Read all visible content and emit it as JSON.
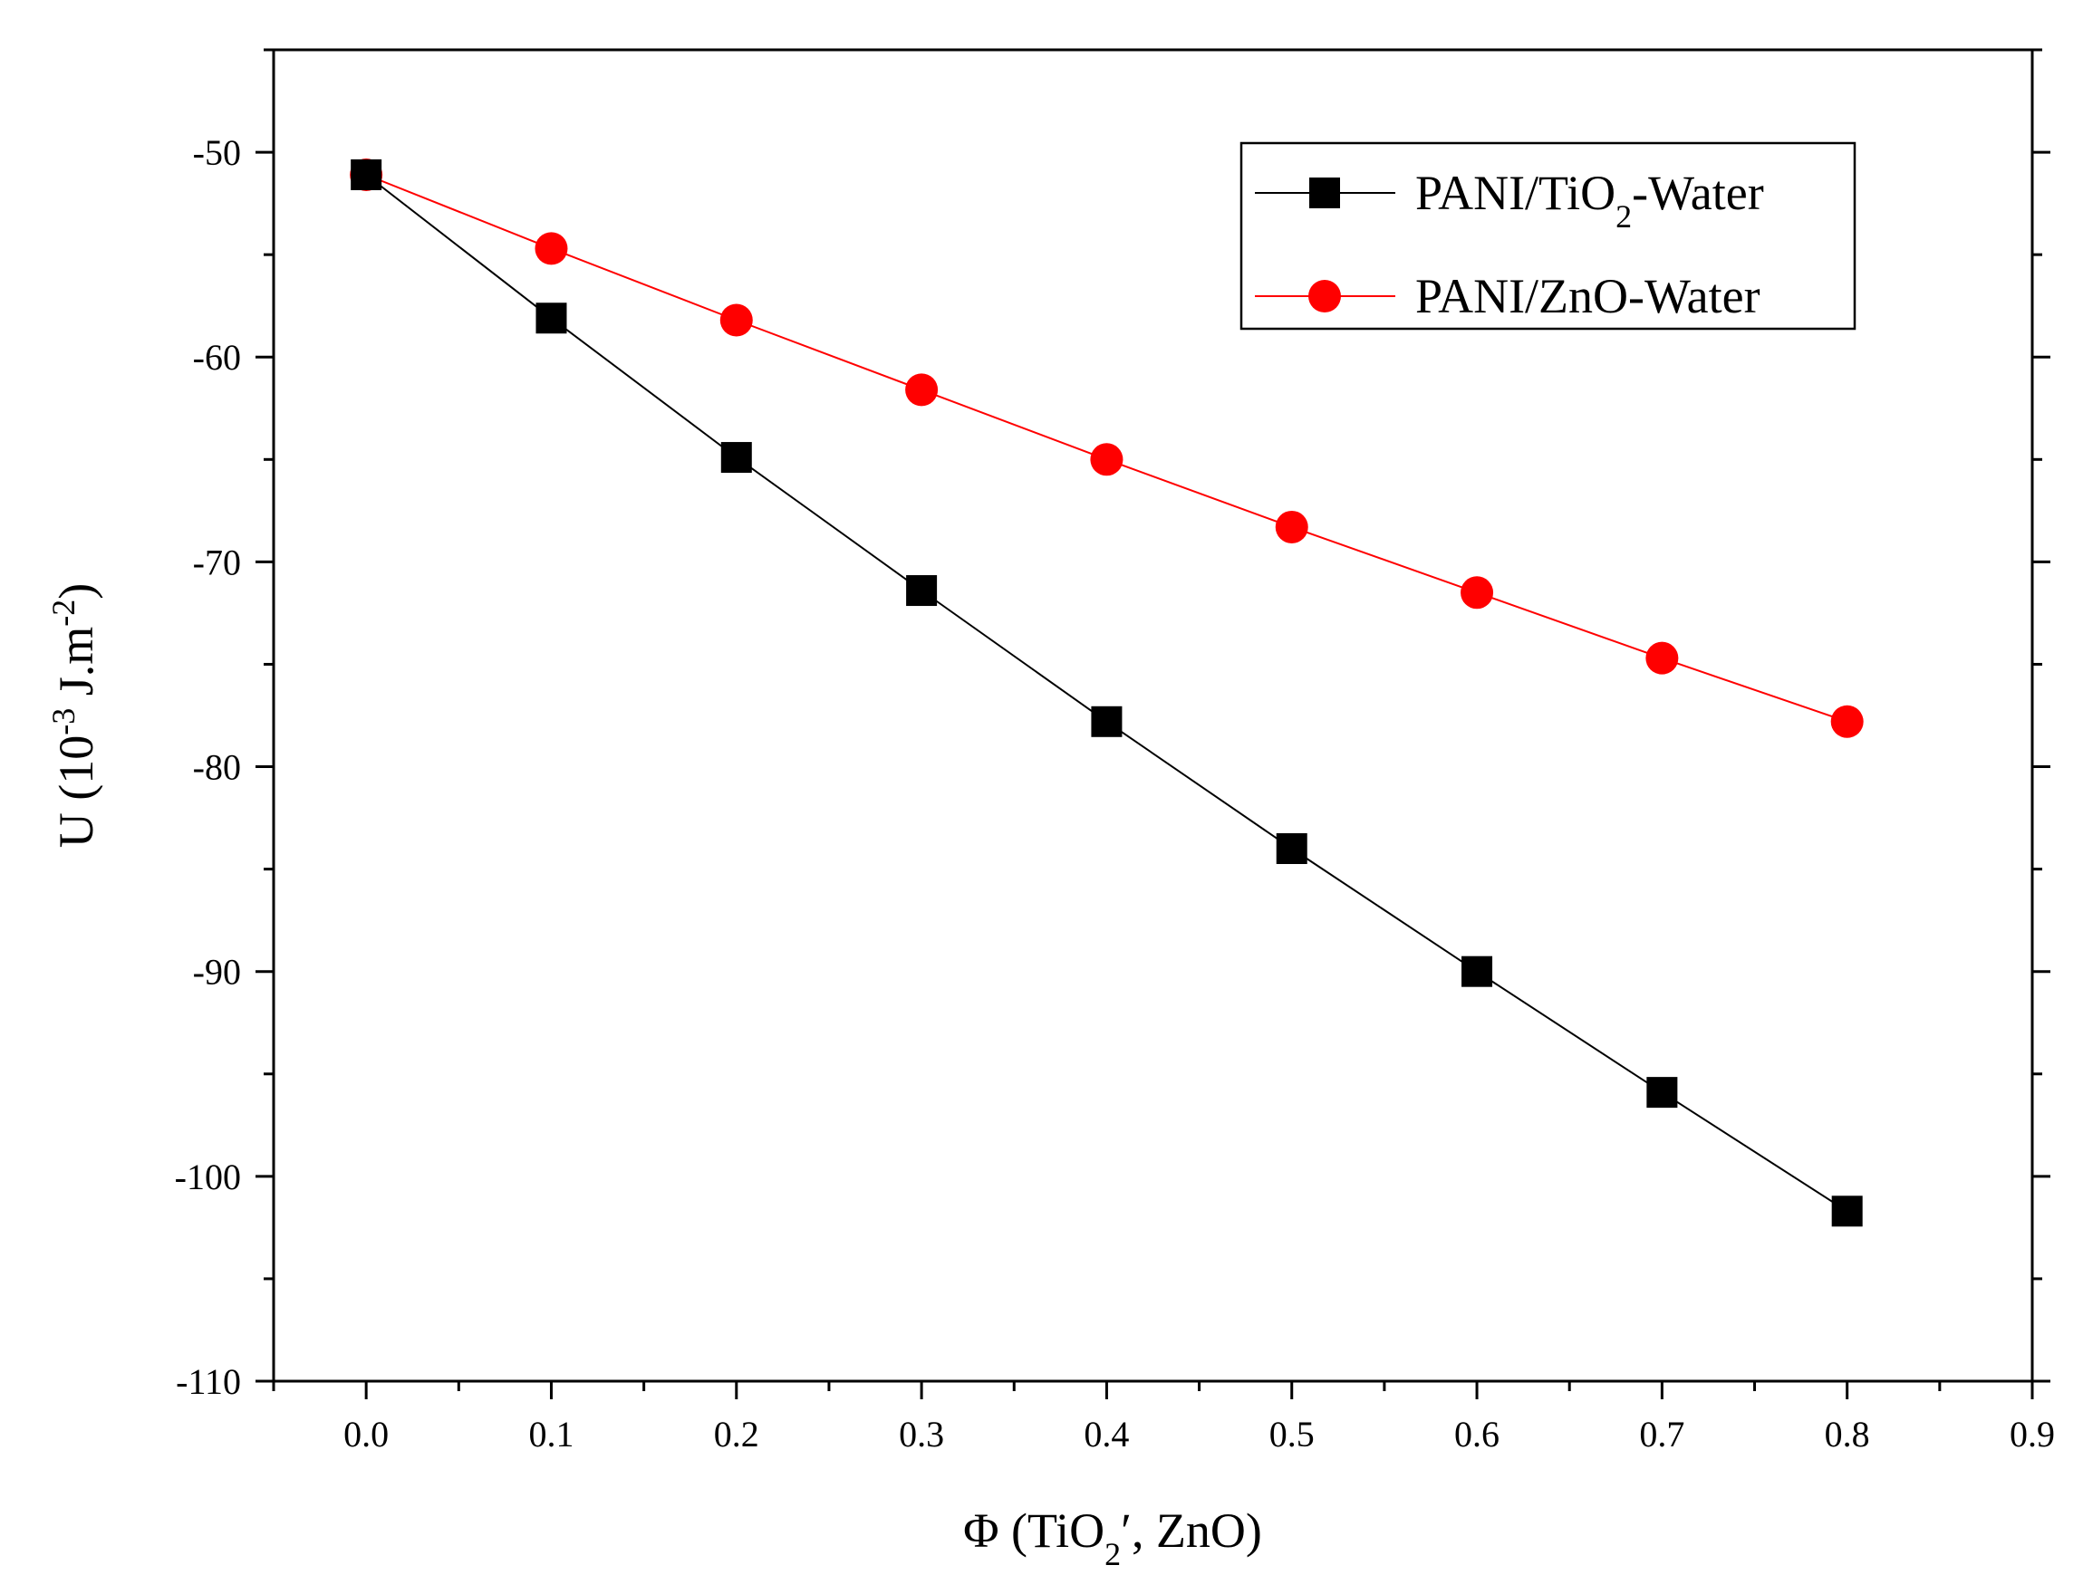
{
  "chart_data": {
    "type": "line",
    "title": "",
    "xlabel": {
      "prefix": "Φ (TiO",
      "sub": "2",
      "suffix": "′, ZnO)"
    },
    "ylabel": {
      "prefix": "U (10",
      "sup1": "-3",
      "middle": " J.m",
      "sup2": "-2",
      "suffix": ")"
    },
    "xlim": [
      -0.05,
      0.9
    ],
    "ylim": [
      -110,
      -45
    ],
    "x_ticks": [
      0.0,
      0.1,
      0.2,
      0.3,
      0.4,
      0.5,
      0.6,
      0.7,
      0.8,
      0.9
    ],
    "x_tick_labels": [
      "0.0",
      "0.1",
      "0.2",
      "0.3",
      "0.4",
      "0.5",
      "0.6",
      "0.7",
      "0.8",
      "0.9"
    ],
    "y_ticks": [
      -50,
      -60,
      -70,
      -80,
      -90,
      -100,
      -110
    ],
    "y_tick_labels": [
      "-50",
      "-60",
      "-70",
      "-80",
      "-90",
      "-100",
      "-110"
    ],
    "legend_position": "top-right",
    "series": [
      {
        "name": "PANI/TiO2-Water",
        "label_parts": {
          "prefix": "PANI/TiO",
          "sub": "2",
          "suffix": "-Water"
        },
        "color": "#000000",
        "marker": "square",
        "x": [
          0.0,
          0.1,
          0.2,
          0.3,
          0.4,
          0.5,
          0.6,
          0.7,
          0.8
        ],
        "values": [
          -51.1,
          -58.1,
          -64.9,
          -71.4,
          -77.8,
          -84.0,
          -90.0,
          -95.9,
          -101.7
        ]
      },
      {
        "name": "PANI/ZnO-Water",
        "label_parts": {
          "prefix": "PANI/ZnO-Water",
          "sub": "",
          "suffix": ""
        },
        "color": "#ff0000",
        "marker": "circle",
        "x": [
          0.0,
          0.1,
          0.2,
          0.3,
          0.4,
          0.5,
          0.6,
          0.7,
          0.8
        ],
        "values": [
          -51.1,
          -54.7,
          -58.2,
          -61.6,
          -65.0,
          -68.3,
          -71.5,
          -74.7,
          -77.8
        ]
      }
    ]
  }
}
